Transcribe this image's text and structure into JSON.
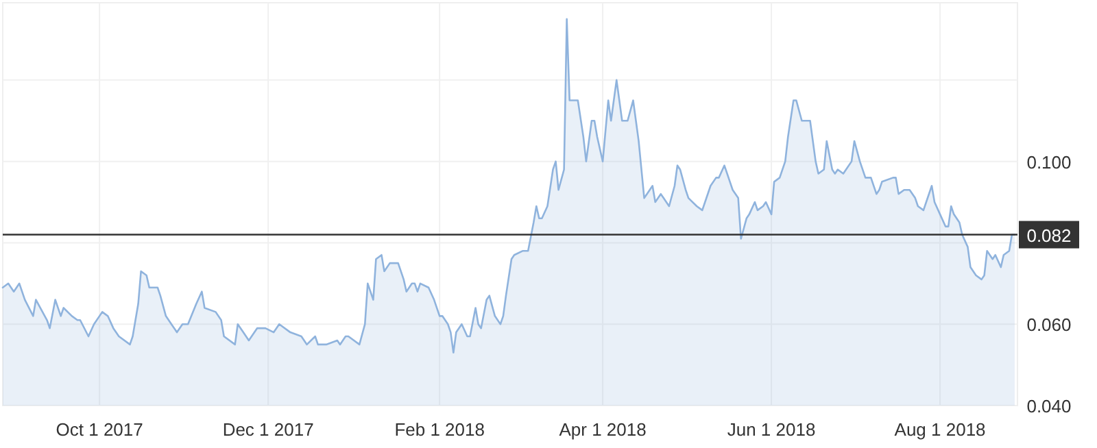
{
  "chart_data": {
    "type": "area",
    "xlim": [
      "2017-08-27",
      "2018-08-29"
    ],
    "ylim": [
      0.04,
      0.139
    ],
    "xticks": [
      {
        "value": "2017-10-01",
        "label": "Oct 1 2017"
      },
      {
        "value": "2017-12-01",
        "label": "Dec 1 2017"
      },
      {
        "value": "2018-02-01",
        "label": "Feb 1 2018"
      },
      {
        "value": "2018-04-01",
        "label": "Apr 1 2018"
      },
      {
        "value": "2018-06-01",
        "label": "Jun 1 2018"
      },
      {
        "value": "2018-08-01",
        "label": "Aug 1 2018"
      }
    ],
    "yticks": [
      {
        "value": 0.04,
        "label": "0.040"
      },
      {
        "value": 0.06,
        "label": "0.060"
      },
      {
        "value": 0.08,
        "label": null
      },
      {
        "value": 0.1,
        "label": "0.100"
      },
      {
        "value": 0.12,
        "label": null
      }
    ],
    "grid": true,
    "ref_lines": [
      {
        "axis": "y",
        "value": 0.082,
        "label": "0.082",
        "color": "#333333"
      }
    ],
    "series": [
      {
        "color": "#8fb3dd",
        "x": [
          "2017-08-27",
          "2017-08-29",
          "2017-08-31",
          "2017-09-02",
          "2017-09-04",
          "2017-09-07",
          "2017-09-08",
          "2017-09-12",
          "2017-09-13",
          "2017-09-15",
          "2017-09-17",
          "2017-09-18",
          "2017-09-21",
          "2017-09-23",
          "2017-09-24",
          "2017-09-27",
          "2017-09-29",
          "2017-10-02",
          "2017-10-04",
          "2017-10-06",
          "2017-10-08",
          "2017-10-12",
          "2017-10-13",
          "2017-10-15",
          "2017-10-16",
          "2017-10-18",
          "2017-10-19",
          "2017-10-22",
          "2017-10-23",
          "2017-10-25",
          "2017-10-27",
          "2017-10-29",
          "2017-10-31",
          "2017-11-02",
          "2017-11-05",
          "2017-11-07",
          "2017-11-08",
          "2017-11-12",
          "2017-11-14",
          "2017-11-15",
          "2017-11-19",
          "2017-11-20",
          "2017-11-22",
          "2017-11-24",
          "2017-11-27",
          "2017-11-30",
          "2017-12-03",
          "2017-12-05",
          "2017-12-09",
          "2017-12-13",
          "2017-12-15",
          "2017-12-18",
          "2017-12-19",
          "2017-12-22",
          "2017-12-26",
          "2017-12-27",
          "2017-12-29",
          "2017-12-30",
          "2018-01-03",
          "2018-01-05",
          "2018-01-06",
          "2018-01-08",
          "2018-01-09",
          "2018-01-11",
          "2018-01-12",
          "2018-01-14",
          "2018-01-17",
          "2018-01-19",
          "2018-01-20",
          "2018-01-22",
          "2018-01-23",
          "2018-01-24",
          "2018-01-25",
          "2018-01-28",
          "2018-01-30",
          "2018-02-01",
          "2018-02-02",
          "2018-02-04",
          "2018-02-05",
          "2018-02-06",
          "2018-02-07",
          "2018-02-09",
          "2018-02-11",
          "2018-02-12",
          "2018-02-14",
          "2018-02-15",
          "2018-02-16",
          "2018-02-18",
          "2018-02-19",
          "2018-02-21",
          "2018-02-23",
          "2018-02-24",
          "2018-02-25",
          "2018-02-27",
          "2018-02-28",
          "2018-03-03",
          "2018-03-05",
          "2018-03-07",
          "2018-03-08",
          "2018-03-09",
          "2018-03-10",
          "2018-03-12",
          "2018-03-14",
          "2018-03-15",
          "2018-03-16",
          "2018-03-18",
          "2018-03-19",
          "2018-03-20",
          "2018-03-23",
          "2018-03-25",
          "2018-03-26",
          "2018-03-28",
          "2018-03-29",
          "2018-03-30",
          "2018-04-01",
          "2018-04-03",
          "2018-04-04",
          "2018-04-06",
          "2018-04-07",
          "2018-04-08",
          "2018-04-10",
          "2018-04-12",
          "2018-04-13",
          "2018-04-14",
          "2018-04-16",
          "2018-04-17",
          "2018-04-19",
          "2018-04-20",
          "2018-04-22",
          "2018-04-23",
          "2018-04-25",
          "2018-04-27",
          "2018-04-28",
          "2018-04-29",
          "2018-05-01",
          "2018-05-02",
          "2018-05-05",
          "2018-05-07",
          "2018-05-08",
          "2018-05-10",
          "2018-05-12",
          "2018-05-13",
          "2018-05-15",
          "2018-05-17",
          "2018-05-18",
          "2018-05-20",
          "2018-05-21",
          "2018-05-23",
          "2018-05-24",
          "2018-05-26",
          "2018-05-27",
          "2018-05-29",
          "2018-05-30",
          "2018-06-01",
          "2018-06-02",
          "2018-06-04",
          "2018-06-06",
          "2018-06-07",
          "2018-06-09",
          "2018-06-10",
          "2018-06-12",
          "2018-06-15",
          "2018-06-17",
          "2018-06-18",
          "2018-06-20",
          "2018-06-21",
          "2018-06-23",
          "2018-06-24",
          "2018-06-25",
          "2018-06-27",
          "2018-06-28",
          "2018-06-30",
          "2018-07-01",
          "2018-07-03",
          "2018-07-05",
          "2018-07-07",
          "2018-07-09",
          "2018-07-10",
          "2018-07-11",
          "2018-07-15",
          "2018-07-16",
          "2018-07-17",
          "2018-07-19",
          "2018-07-21",
          "2018-07-23",
          "2018-07-24",
          "2018-07-26",
          "2018-07-27",
          "2018-07-29",
          "2018-07-30",
          "2018-08-01",
          "2018-08-03",
          "2018-08-04",
          "2018-08-05",
          "2018-08-06",
          "2018-08-08",
          "2018-08-09",
          "2018-08-11",
          "2018-08-12",
          "2018-08-14",
          "2018-08-16",
          "2018-08-17",
          "2018-08-18",
          "2018-08-20",
          "2018-08-21",
          "2018-08-23",
          "2018-08-24",
          "2018-08-26",
          "2018-08-27",
          "2018-08-28"
        ],
        "values": [
          0.069,
          0.07,
          0.068,
          0.07,
          0.066,
          0.062,
          0.066,
          0.061,
          0.059,
          0.066,
          0.062,
          0.064,
          0.062,
          0.061,
          0.061,
          0.057,
          0.06,
          0.063,
          0.062,
          0.059,
          0.057,
          0.055,
          0.057,
          0.065,
          0.073,
          0.072,
          0.069,
          0.069,
          0.067,
          0.062,
          0.06,
          0.058,
          0.06,
          0.06,
          0.065,
          0.068,
          0.064,
          0.063,
          0.061,
          0.057,
          0.055,
          0.06,
          0.058,
          0.056,
          0.059,
          0.059,
          0.058,
          0.06,
          0.058,
          0.057,
          0.055,
          0.057,
          0.055,
          0.055,
          0.056,
          0.055,
          0.057,
          0.057,
          0.055,
          0.06,
          0.07,
          0.066,
          0.076,
          0.077,
          0.073,
          0.075,
          0.075,
          0.071,
          0.068,
          0.07,
          0.07,
          0.068,
          0.07,
          0.069,
          0.066,
          0.062,
          0.062,
          0.06,
          0.058,
          0.053,
          0.058,
          0.06,
          0.057,
          0.057,
          0.064,
          0.06,
          0.059,
          0.066,
          0.067,
          0.062,
          0.06,
          0.062,
          0.067,
          0.076,
          0.077,
          0.078,
          0.078,
          0.085,
          0.089,
          0.086,
          0.086,
          0.089,
          0.098,
          0.1,
          0.093,
          0.098,
          0.135,
          0.115,
          0.115,
          0.106,
          0.1,
          0.11,
          0.11,
          0.106,
          0.1,
          0.115,
          0.11,
          0.12,
          0.115,
          0.11,
          0.11,
          0.115,
          0.11,
          0.105,
          0.091,
          0.092,
          0.094,
          0.09,
          0.092,
          0.091,
          0.089,
          0.094,
          0.099,
          0.098,
          0.093,
          0.091,
          0.089,
          0.088,
          0.09,
          0.094,
          0.096,
          0.096,
          0.099,
          0.095,
          0.093,
          0.091,
          0.081,
          0.086,
          0.087,
          0.09,
          0.088,
          0.089,
          0.09,
          0.087,
          0.095,
          0.096,
          0.1,
          0.106,
          0.115,
          0.115,
          0.11,
          0.11,
          0.1,
          0.097,
          0.098,
          0.105,
          0.098,
          0.097,
          0.098,
          0.097,
          0.098,
          0.1,
          0.105,
          0.1,
          0.096,
          0.096,
          0.092,
          0.093,
          0.095,
          0.096,
          0.096,
          0.092,
          0.093,
          0.093,
          0.091,
          0.089,
          0.088,
          0.09,
          0.094,
          0.09,
          0.087,
          0.084,
          0.084,
          0.089,
          0.087,
          0.085,
          0.082,
          0.079,
          0.074,
          0.072,
          0.071,
          0.072,
          0.078,
          0.076,
          0.077,
          0.074,
          0.077,
          0.078,
          0.082,
          0.082
        ]
      }
    ]
  }
}
